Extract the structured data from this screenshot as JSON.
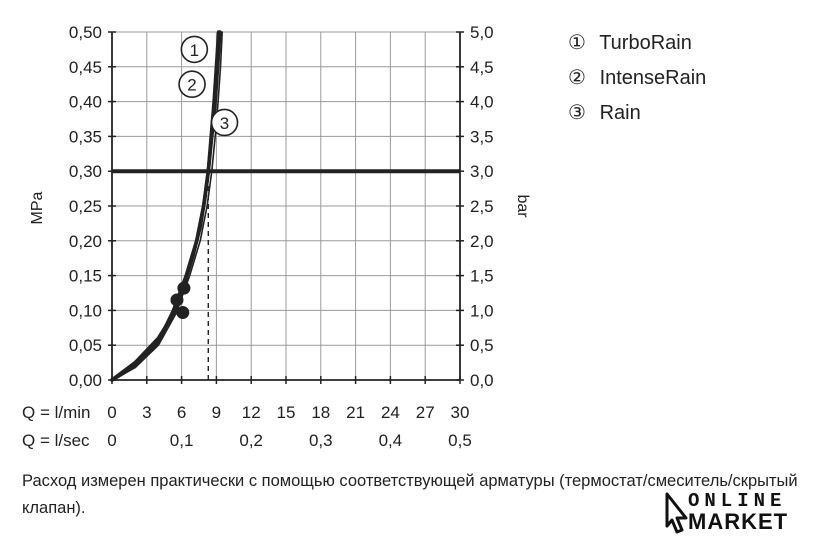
{
  "chart_data": {
    "type": "line",
    "ylabel_left": "MPa",
    "ylabel_right": "bar",
    "x_label_min": "Q = l/min",
    "x_label_sec": "Q = l/sec",
    "x_ticks_min": [
      "0",
      "3",
      "6",
      "9",
      "12",
      "15",
      "18",
      "21",
      "24",
      "27",
      "30"
    ],
    "x_ticks_sec": [
      "0",
      "0,1",
      "0,2",
      "0,3",
      "0,4",
      "0,5"
    ],
    "y_ticks_left": [
      "0,00",
      "0,05",
      "0,10",
      "0,15",
      "0,20",
      "0,25",
      "0,30",
      "0,35",
      "0,40",
      "0,45",
      "0,50"
    ],
    "y_ticks_right": [
      "0,0",
      "0,5",
      "1,0",
      "1,5",
      "2,0",
      "2,5",
      "3,0",
      "3,5",
      "4,0",
      "4,5",
      "5,0"
    ],
    "xlim": [
      0,
      30
    ],
    "ylim": [
      0,
      0.5
    ],
    "grid": true,
    "reference_line_mpa": 0.3,
    "series": [
      {
        "name": "1",
        "style": "thick",
        "x": [
          0,
          2,
          4,
          5.5,
          6.2,
          7.0,
          7.6,
          8.0,
          8.3,
          8.55,
          8.8,
          9.0,
          9.2
        ],
        "y": [
          0,
          0.025,
          0.06,
          0.1,
          0.135,
          0.18,
          0.22,
          0.26,
          0.3,
          0.35,
          0.4,
          0.45,
          0.5
        ]
      },
      {
        "name": "2",
        "style": "thick",
        "x": [
          0,
          2,
          4,
          5.3,
          6.4,
          7.3,
          7.9,
          8.3,
          8.6,
          8.9,
          9.1,
          9.3
        ],
        "y": [
          0,
          0.02,
          0.055,
          0.1,
          0.15,
          0.2,
          0.25,
          0.3,
          0.35,
          0.4,
          0.45,
          0.5
        ]
      },
      {
        "name": "3",
        "style": "thin",
        "x": [
          0,
          2,
          4,
          5.5,
          6.7,
          7.6,
          8.2,
          8.6,
          8.9,
          9.15,
          9.35,
          9.5
        ],
        "y": [
          0,
          0.018,
          0.05,
          0.095,
          0.15,
          0.2,
          0.25,
          0.3,
          0.35,
          0.4,
          0.45,
          0.5
        ]
      }
    ],
    "markers": [
      {
        "x": 6.2,
        "y": 0.132
      },
      {
        "x": 5.6,
        "y": 0.115
      },
      {
        "x": 6.1,
        "y": 0.097
      }
    ],
    "dashed_guide": {
      "x": 8.3,
      "y_from": 0,
      "y_to": 0.3
    },
    "labels": [
      {
        "text": "1",
        "x": 7.1,
        "y": 0.475
      },
      {
        "text": "2",
        "x": 6.9,
        "y": 0.425
      },
      {
        "text": "3",
        "x": 9.7,
        "y": 0.37
      }
    ]
  },
  "legend": [
    {
      "mark": "①",
      "label": "TurboRain"
    },
    {
      "mark": "②",
      "label": "IntenseRain"
    },
    {
      "mark": "③",
      "label": "Rain"
    }
  ],
  "caption": "Расход измерен практически с помощью соответствующей арматуры (термостат/смеситель/скрытый клапан).",
  "watermark": {
    "line1": "ONLINE",
    "line2": "MARKET"
  },
  "colors": {
    "ink": "#222222",
    "grid": "#9a9a9a",
    "background": "#ffffff"
  }
}
